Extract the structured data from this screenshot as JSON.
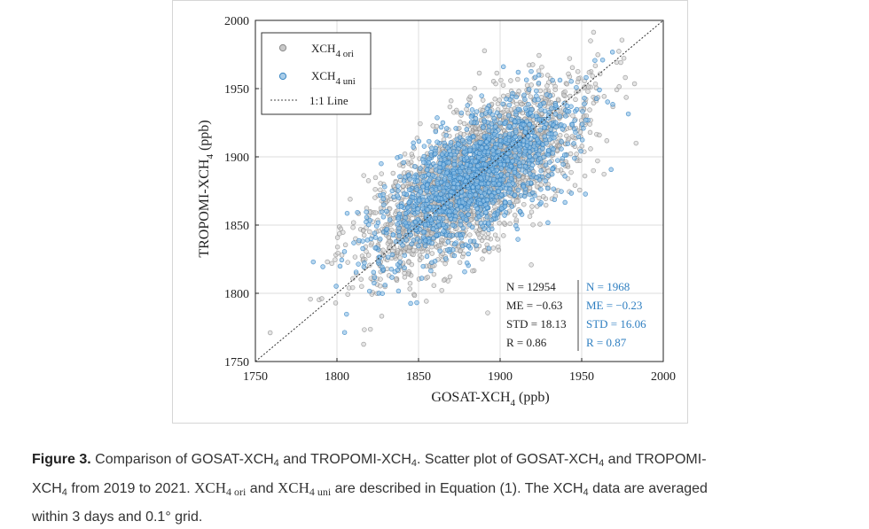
{
  "chart_data": {
    "type": "scatter",
    "xlabel": "GOSAT-XCH",
    "xlabel_sub": "4",
    "xlabel_unit": " (ppb)",
    "ylabel": "TROPOMI-XCH",
    "ylabel_sub": "4",
    "ylabel_unit": " (ppb)",
    "xlim": [
      1750,
      2000
    ],
    "ylim": [
      1750,
      2000
    ],
    "xticks": [
      "1750",
      "1800",
      "1850",
      "1900",
      "1950",
      "2000"
    ],
    "yticks": [
      "1750",
      "1800",
      "1850",
      "1900",
      "1950",
      "2000"
    ],
    "grid": true,
    "legend_position": "top-left",
    "legend": [
      {
        "main": "XCH",
        "sub": "4 ori",
        "marker": "circle",
        "color": "#9a9a9a"
      },
      {
        "main": "XCH",
        "sub": "4 uni",
        "marker": "circle",
        "color": "#3a86c2"
      },
      {
        "main": "1:1 Line",
        "sub": "",
        "marker": "dotted-line",
        "color": "#444444"
      }
    ],
    "series": [
      {
        "name": "XCH4 ori",
        "color": "#8c8c8c",
        "distribution": {
          "center": 1885,
          "spread_along": 42,
          "spread_across": 18,
          "count_drawn": 2600
        },
        "stats": [
          "N = 12954",
          "ME = −0.63",
          "STD = 18.13",
          "R = 0.86"
        ]
      },
      {
        "name": "XCH4 uni",
        "color": "#2f7fc1",
        "distribution": {
          "center": 1885,
          "spread_along": 38,
          "spread_across": 16,
          "count_drawn": 1500
        },
        "stats": [
          "N = 1968",
          "ME = −0.23",
          "STD = 16.06",
          "R = 0.87"
        ]
      }
    ],
    "one_to_one_line": true
  },
  "caption": {
    "label": "Figure 3.",
    "line1_a": " Comparison of GOSAT-XCH",
    "sub4": "4",
    "line1_b": " and TROPOMI-XCH",
    "line1_c": ". Scatter plot of GOSAT-XCH",
    "line1_d": " and TROPOMI-",
    "line2_a": "XCH",
    "line2_b": " from 2019 to 2021. ",
    "xch": "XCH",
    "ori_sub": "4 ori",
    "and": " and ",
    "uni_sub": "4 uni",
    "line2_c": " are described in Equation (1). The XCH",
    "line2_d": " data are averaged",
    "line3": "within 3 days and 0.1° grid."
  }
}
